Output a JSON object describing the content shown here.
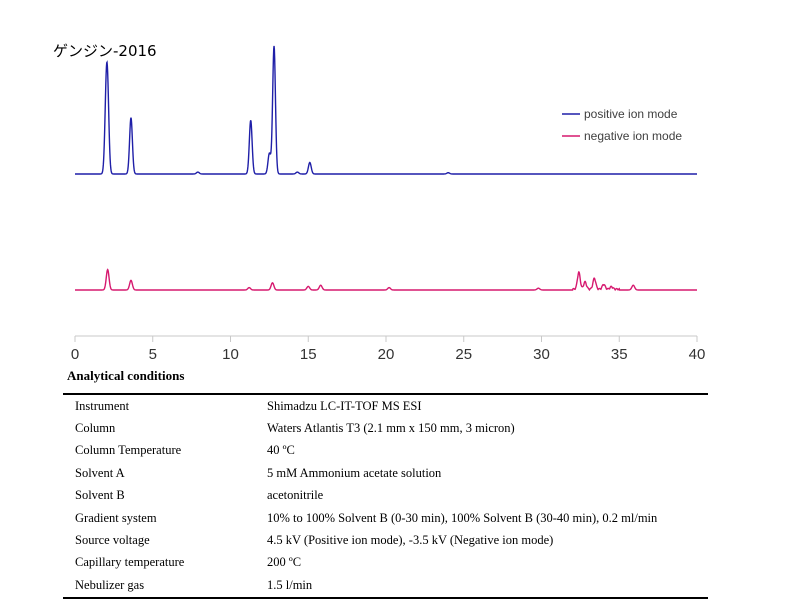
{
  "title": "ゲンジン-2016",
  "chart_data": {
    "type": "line",
    "xlim": [
      0,
      40
    ],
    "x_ticks": [
      "0",
      "5",
      "10",
      "15",
      "20",
      "25",
      "30",
      "35",
      "40"
    ],
    "legend_position": "top-right",
    "series": [
      {
        "name": "positive ion mode",
        "color": "#1f1fa8",
        "peaks": [
          [
            2.0,
            0.49
          ],
          [
            2.1,
            0.53
          ],
          [
            3.6,
            0.44
          ],
          [
            7.9,
            0.015
          ],
          [
            11.3,
            0.42
          ],
          [
            12.5,
            0.16
          ],
          [
            12.8,
            1.0
          ],
          [
            14.3,
            0.015
          ],
          [
            15.1,
            0.09
          ],
          [
            24.0,
            0.01
          ]
        ]
      },
      {
        "name": "negative ion mode",
        "color": "#d6196f",
        "peaks": [
          [
            2.1,
            0.17
          ],
          [
            3.6,
            0.08
          ],
          [
            11.2,
            0.02
          ],
          [
            12.7,
            0.06
          ],
          [
            15.0,
            0.03
          ],
          [
            15.8,
            0.04
          ],
          [
            20.2,
            0.02
          ],
          [
            29.8,
            0.015
          ],
          [
            32.4,
            0.14
          ],
          [
            32.8,
            0.06
          ],
          [
            33.4,
            0.09
          ],
          [
            34.0,
            0.04
          ],
          [
            34.5,
            0.02
          ],
          [
            35.9,
            0.04
          ]
        ]
      }
    ]
  },
  "conditions": {
    "heading": "Analytical conditions",
    "rows": [
      {
        "key": "Instrument",
        "value": "Shimadzu LC-IT-TOF MS ESI"
      },
      {
        "key": "Column",
        "value": "Waters Atlantis T3 (2.1 mm x 150 mm, 3 micron)"
      },
      {
        "key": "Column Temperature",
        "value": "40 ºC"
      },
      {
        "key": "Solvent A",
        "value": "5 mM Ammonium acetate solution"
      },
      {
        "key": "Solvent B",
        "value": "acetonitrile"
      },
      {
        "key": "Gradient system",
        "value": "10% to 100% Solvent B (0-30 min), 100% Solvent B (30-40 min), 0.2 ml/min"
      },
      {
        "key": "Source voltage",
        "value": "4.5 kV (Positive ion mode), -3.5 kV (Negative ion mode)"
      },
      {
        "key": "Capillary temperature",
        "value": "200 ºC"
      },
      {
        "key": "Nebulizer gas",
        "value": "1.5 l/min"
      }
    ]
  }
}
